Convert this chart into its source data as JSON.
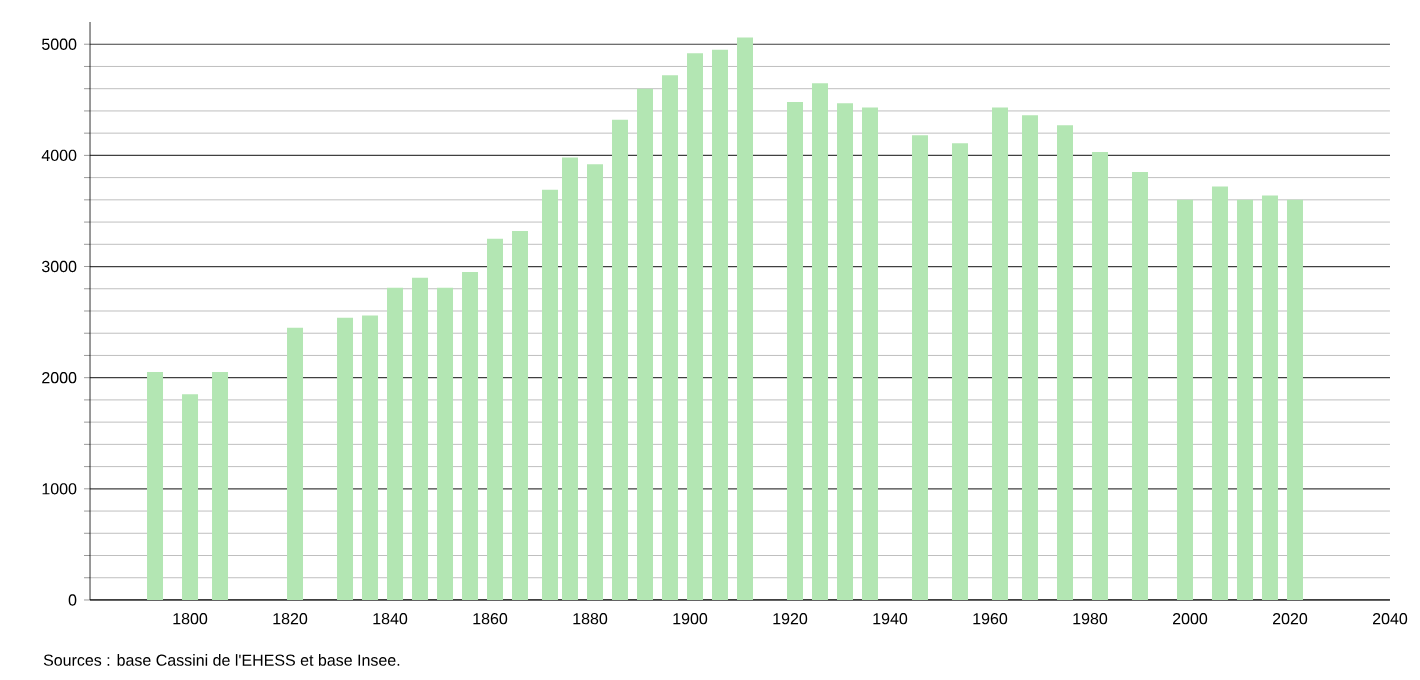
{
  "chart_data": {
    "type": "bar",
    "x": [
      1793,
      1800,
      1806,
      1821,
      1831,
      1836,
      1841,
      1846,
      1851,
      1856,
      1861,
      1866,
      1872,
      1876,
      1881,
      1886,
      1891,
      1896,
      1901,
      1906,
      1911,
      1921,
      1926,
      1931,
      1936,
      1946,
      1954,
      1962,
      1968,
      1975,
      1982,
      1990,
      1999,
      2006,
      2011,
      2016,
      2021
    ],
    "values": [
      2050,
      1850,
      2050,
      2450,
      2540,
      2560,
      2810,
      2900,
      2810,
      2950,
      3250,
      3320,
      3690,
      3980,
      3920,
      4320,
      4600,
      4720,
      4920,
      4950,
      5060,
      4480,
      4650,
      4470,
      4430,
      4180,
      4110,
      4430,
      4360,
      4270,
      4030,
      3850,
      3600,
      3720,
      3600,
      3640,
      3600
    ],
    "color": "#b3e6b3",
    "xlim": [
      1780,
      2040
    ],
    "xticks": [
      1800,
      1820,
      1840,
      1860,
      1880,
      1900,
      1920,
      1940,
      1960,
      1980,
      2000,
      2020,
      2040
    ],
    "ylim": [
      0,
      5200
    ],
    "yticks": [
      0,
      1000,
      2000,
      3000,
      4000,
      5000
    ],
    "grid": "y",
    "annotations": [
      "Sources : base Cassini de l'EHESS et base Insee."
    ]
  }
}
